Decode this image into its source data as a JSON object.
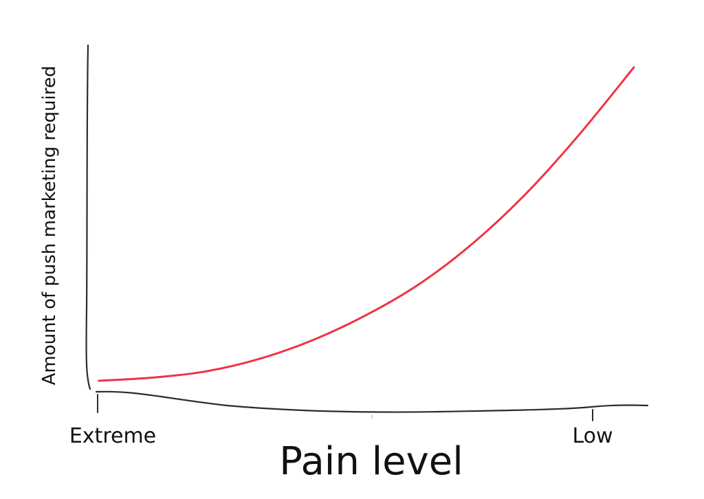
{
  "chart_data": {
    "type": "line",
    "title": "",
    "xlabel": "Pain level",
    "ylabel": "Amount of push marketing required",
    "x_tick_labels": [
      "Extreme",
      "Low"
    ],
    "x": [
      0,
      0.1,
      0.2,
      0.3,
      0.4,
      0.5,
      0.6,
      0.7,
      0.8,
      0.9,
      1.0
    ],
    "series": [
      {
        "name": "",
        "color": "#ee3344",
        "values": [
          0,
          0.01,
          0.03,
          0.07,
          0.13,
          0.21,
          0.31,
          0.44,
          0.6,
          0.79,
          1.0
        ]
      }
    ],
    "grid": false,
    "legend": "none"
  }
}
